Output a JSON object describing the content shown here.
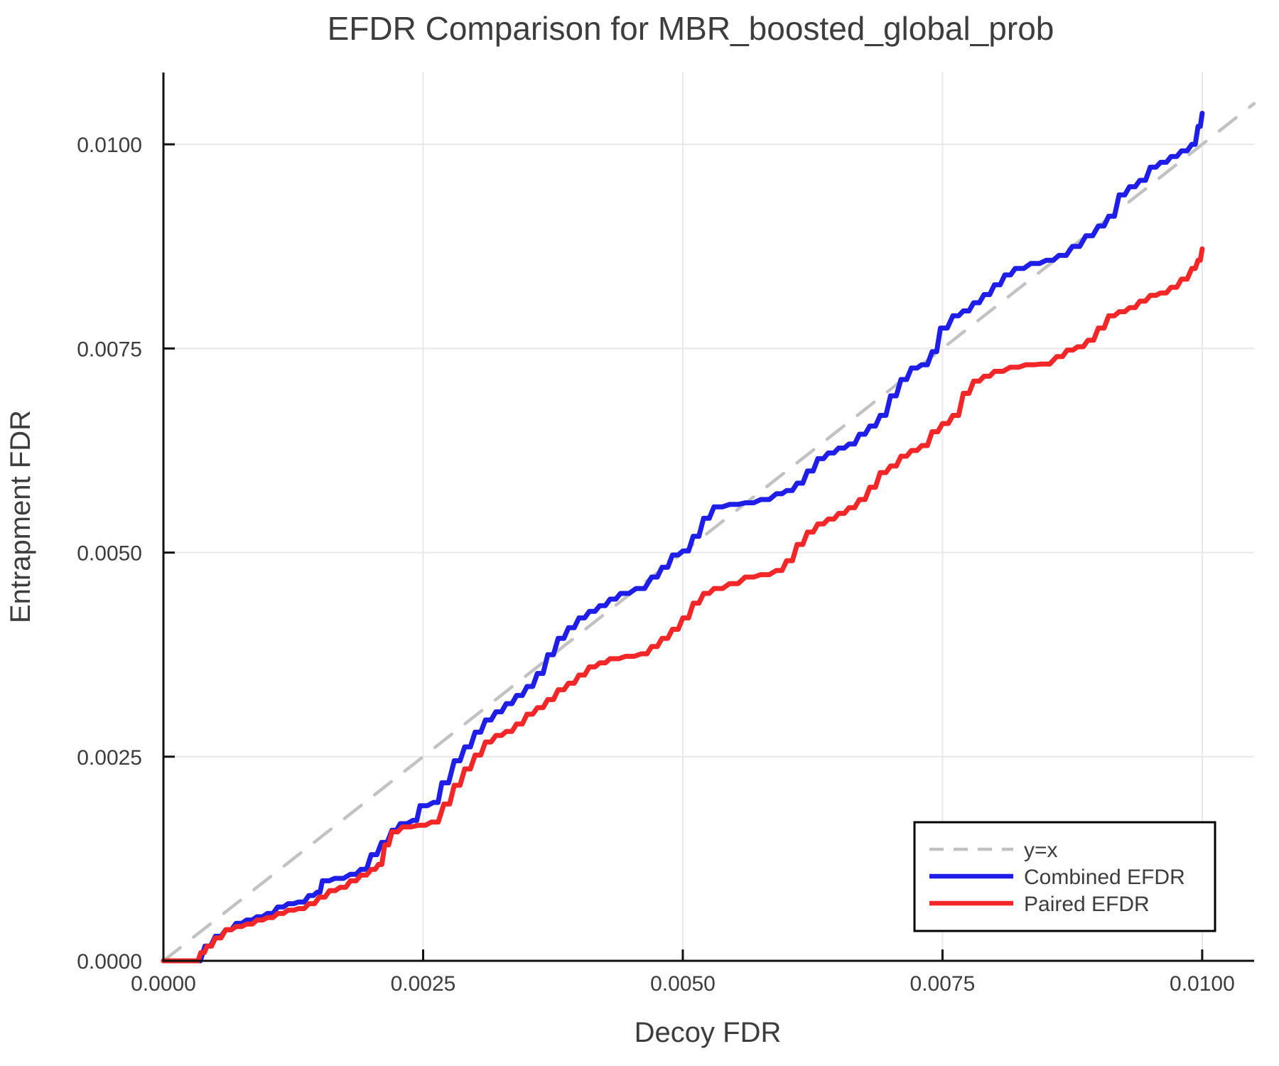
{
  "chart_data": {
    "type": "line",
    "title": "EFDR Comparison for MBR_boosted_global_prob",
    "xlabel": "Decoy FDR",
    "ylabel": "Entrapment FDR",
    "xlim": [
      0,
      0.0105
    ],
    "ylim": [
      0,
      0.01088
    ],
    "grid": true,
    "legend_position": "bottom-right",
    "x_ticks": {
      "values": [
        0,
        0.0025,
        0.005,
        0.0075,
        0.01
      ],
      "labels": [
        "0.0000",
        "0.0025",
        "0.0050",
        "0.0075",
        "0.0100"
      ]
    },
    "y_ticks": {
      "values": [
        0,
        0.0025,
        0.005,
        0.0075,
        0.01
      ],
      "labels": [
        "0.0000",
        "0.0025",
        "0.0050",
        "0.0075",
        "0.0100"
      ]
    },
    "colors": {
      "identity_line": "#c2c2c2",
      "combined_efdr": "#1e1ee8",
      "paired_efdr": "#f32727",
      "grid": "#e8e8e8",
      "axis": "#111111",
      "text": "#3d3d3d",
      "legend_border": "#000000",
      "legend_background": "#ffffff"
    },
    "series": [
      {
        "name": "y=x",
        "style": "dashed",
        "step": false,
        "width": 4.5,
        "color_key": "identity_line",
        "points": [
          [
            0,
            0
          ],
          [
            0.0105,
            0.0105
          ]
        ]
      },
      {
        "name": "Combined EFDR",
        "style": "solid",
        "step": true,
        "width": 7,
        "color_key": "combined_efdr",
        "points": [
          [
            0.0,
            0.0
          ],
          [
            0.0003,
            0.0
          ],
          [
            0.0004,
            0.00018
          ],
          [
            0.0005,
            0.0003
          ],
          [
            0.0006,
            0.00038
          ],
          [
            0.0007,
            0.00046
          ],
          [
            0.0008,
            0.0005
          ],
          [
            0.0009,
            0.00054
          ],
          [
            0.001,
            0.00058
          ],
          [
            0.0011,
            0.00066
          ],
          [
            0.0012,
            0.0007
          ],
          [
            0.0013,
            0.00072
          ],
          [
            0.0014,
            0.0008
          ],
          [
            0.00148,
            0.00084
          ],
          [
            0.00153,
            0.00098
          ],
          [
            0.00165,
            0.00101
          ],
          [
            0.0018,
            0.00106
          ],
          [
            0.0019,
            0.00112
          ],
          [
            0.002,
            0.0013
          ],
          [
            0.0021,
            0.00145
          ],
          [
            0.0022,
            0.0016
          ],
          [
            0.00228,
            0.00168
          ],
          [
            0.0024,
            0.00172
          ],
          [
            0.00247,
            0.0019
          ],
          [
            0.0026,
            0.00194
          ],
          [
            0.00268,
            0.00218
          ],
          [
            0.0028,
            0.00245
          ],
          [
            0.0029,
            0.00262
          ],
          [
            0.003,
            0.0028
          ],
          [
            0.0031,
            0.00295
          ],
          [
            0.0032,
            0.00305
          ],
          [
            0.0033,
            0.00315
          ],
          [
            0.0034,
            0.00325
          ],
          [
            0.0035,
            0.00336
          ],
          [
            0.0036,
            0.00352
          ],
          [
            0.0037,
            0.00375
          ],
          [
            0.0038,
            0.00395
          ],
          [
            0.0039,
            0.00408
          ],
          [
            0.004,
            0.0042
          ],
          [
            0.0041,
            0.00428
          ],
          [
            0.0042,
            0.00435
          ],
          [
            0.0043,
            0.00443
          ],
          [
            0.0044,
            0.0045
          ],
          [
            0.00455,
            0.00456
          ],
          [
            0.0047,
            0.0047
          ],
          [
            0.0048,
            0.00482
          ],
          [
            0.0049,
            0.00497
          ],
          [
            0.005,
            0.00502
          ],
          [
            0.0051,
            0.0052
          ],
          [
            0.0052,
            0.00542
          ],
          [
            0.0053,
            0.00556
          ],
          [
            0.00545,
            0.00559
          ],
          [
            0.0056,
            0.00561
          ],
          [
            0.00575,
            0.00565
          ],
          [
            0.0059,
            0.00572
          ],
          [
            0.006,
            0.00576
          ],
          [
            0.0061,
            0.00585
          ],
          [
            0.0062,
            0.006
          ],
          [
            0.0063,
            0.00615
          ],
          [
            0.0064,
            0.00622
          ],
          [
            0.0065,
            0.00628
          ],
          [
            0.0066,
            0.00633
          ],
          [
            0.0067,
            0.00645
          ],
          [
            0.0068,
            0.00655
          ],
          [
            0.0069,
            0.00668
          ],
          [
            0.007,
            0.00692
          ],
          [
            0.0071,
            0.00712
          ],
          [
            0.0072,
            0.00726
          ],
          [
            0.0073,
            0.0073
          ],
          [
            0.0074,
            0.00746
          ],
          [
            0.00748,
            0.00775
          ],
          [
            0.0076,
            0.0079
          ],
          [
            0.0077,
            0.00796
          ],
          [
            0.0078,
            0.00806
          ],
          [
            0.0079,
            0.00816
          ],
          [
            0.008,
            0.00828
          ],
          [
            0.0081,
            0.0084
          ],
          [
            0.0082,
            0.00848
          ],
          [
            0.00835,
            0.00854
          ],
          [
            0.0085,
            0.00858
          ],
          [
            0.00862,
            0.00864
          ],
          [
            0.00875,
            0.00875
          ],
          [
            0.00888,
            0.00888
          ],
          [
            0.009,
            0.009
          ],
          [
            0.0091,
            0.00912
          ],
          [
            0.0092,
            0.00938
          ],
          [
            0.0093,
            0.00948
          ],
          [
            0.0094,
            0.00956
          ],
          [
            0.0095,
            0.00972
          ],
          [
            0.0096,
            0.00978
          ],
          [
            0.0097,
            0.00985
          ],
          [
            0.0098,
            0.00992
          ],
          [
            0.0099,
            0.01
          ],
          [
            0.00996,
            0.01022
          ],
          [
            0.01,
            0.01038
          ]
        ]
      },
      {
        "name": "Paired EFDR",
        "style": "solid",
        "step": true,
        "width": 7,
        "color_key": "paired_efdr",
        "points": [
          [
            0.0,
            0.0
          ],
          [
            0.0003,
            0.0
          ],
          [
            0.00036,
            0.0001
          ],
          [
            0.00042,
            0.00018
          ],
          [
            0.0005,
            0.00028
          ],
          [
            0.0006,
            0.00038
          ],
          [
            0.0007,
            0.00042
          ],
          [
            0.0008,
            0.00045
          ],
          [
            0.0009,
            0.0005
          ],
          [
            0.001,
            0.00053
          ],
          [
            0.0011,
            0.00058
          ],
          [
            0.0012,
            0.00062
          ],
          [
            0.0013,
            0.00064
          ],
          [
            0.0014,
            0.0007
          ],
          [
            0.0015,
            0.00078
          ],
          [
            0.0016,
            0.00086
          ],
          [
            0.0017,
            0.0009
          ],
          [
            0.0018,
            0.00098
          ],
          [
            0.0019,
            0.00105
          ],
          [
            0.002,
            0.00112
          ],
          [
            0.00207,
            0.00118
          ],
          [
            0.00213,
            0.00142
          ],
          [
            0.0022,
            0.00158
          ],
          [
            0.0023,
            0.00164
          ],
          [
            0.00245,
            0.00166
          ],
          [
            0.00258,
            0.0017
          ],
          [
            0.0027,
            0.00192
          ],
          [
            0.0028,
            0.00215
          ],
          [
            0.0029,
            0.00235
          ],
          [
            0.003,
            0.00252
          ],
          [
            0.0031,
            0.00268
          ],
          [
            0.0032,
            0.00276
          ],
          [
            0.0033,
            0.00281
          ],
          [
            0.0034,
            0.0029
          ],
          [
            0.0035,
            0.00302
          ],
          [
            0.0036,
            0.0031
          ],
          [
            0.0037,
            0.0032
          ],
          [
            0.0038,
            0.00332
          ],
          [
            0.0039,
            0.0034
          ],
          [
            0.004,
            0.0035
          ],
          [
            0.0041,
            0.0036
          ],
          [
            0.0042,
            0.00365
          ],
          [
            0.0043,
            0.0037
          ],
          [
            0.00445,
            0.00373
          ],
          [
            0.0046,
            0.00376
          ],
          [
            0.0047,
            0.00385
          ],
          [
            0.0048,
            0.00395
          ],
          [
            0.0049,
            0.00406
          ],
          [
            0.005,
            0.0042
          ],
          [
            0.0051,
            0.00438
          ],
          [
            0.0052,
            0.0045
          ],
          [
            0.0053,
            0.00456
          ],
          [
            0.00545,
            0.00462
          ],
          [
            0.0056,
            0.0047
          ],
          [
            0.00575,
            0.00473
          ],
          [
            0.0059,
            0.00478
          ],
          [
            0.006,
            0.0049
          ],
          [
            0.0061,
            0.0051
          ],
          [
            0.0062,
            0.00525
          ],
          [
            0.0063,
            0.00535
          ],
          [
            0.0064,
            0.00541
          ],
          [
            0.0065,
            0.00548
          ],
          [
            0.0066,
            0.00555
          ],
          [
            0.0067,
            0.00565
          ],
          [
            0.0068,
            0.0058
          ],
          [
            0.0069,
            0.00598
          ],
          [
            0.007,
            0.00606
          ],
          [
            0.0071,
            0.00618
          ],
          [
            0.0072,
            0.00625
          ],
          [
            0.0073,
            0.00631
          ],
          [
            0.0074,
            0.00648
          ],
          [
            0.0075,
            0.00658
          ],
          [
            0.0076,
            0.00668
          ],
          [
            0.0077,
            0.00695
          ],
          [
            0.0078,
            0.0071
          ],
          [
            0.0079,
            0.00716
          ],
          [
            0.008,
            0.00722
          ],
          [
            0.00815,
            0.00727
          ],
          [
            0.0083,
            0.0073
          ],
          [
            0.00845,
            0.00731
          ],
          [
            0.0086,
            0.0074
          ],
          [
            0.0087,
            0.00748
          ],
          [
            0.0088,
            0.00752
          ],
          [
            0.0089,
            0.0076
          ],
          [
            0.009,
            0.00775
          ],
          [
            0.0091,
            0.0079
          ],
          [
            0.0092,
            0.00795
          ],
          [
            0.0093,
            0.008
          ],
          [
            0.0094,
            0.00808
          ],
          [
            0.0095,
            0.00815
          ],
          [
            0.0096,
            0.00818
          ],
          [
            0.0097,
            0.00825
          ],
          [
            0.0098,
            0.00835
          ],
          [
            0.0099,
            0.00848
          ],
          [
            0.00996,
            0.00858
          ],
          [
            0.01,
            0.00872
          ]
        ]
      }
    ],
    "legend": {
      "entries": [
        "y=x",
        "Combined EFDR",
        "Paired EFDR"
      ]
    }
  }
}
